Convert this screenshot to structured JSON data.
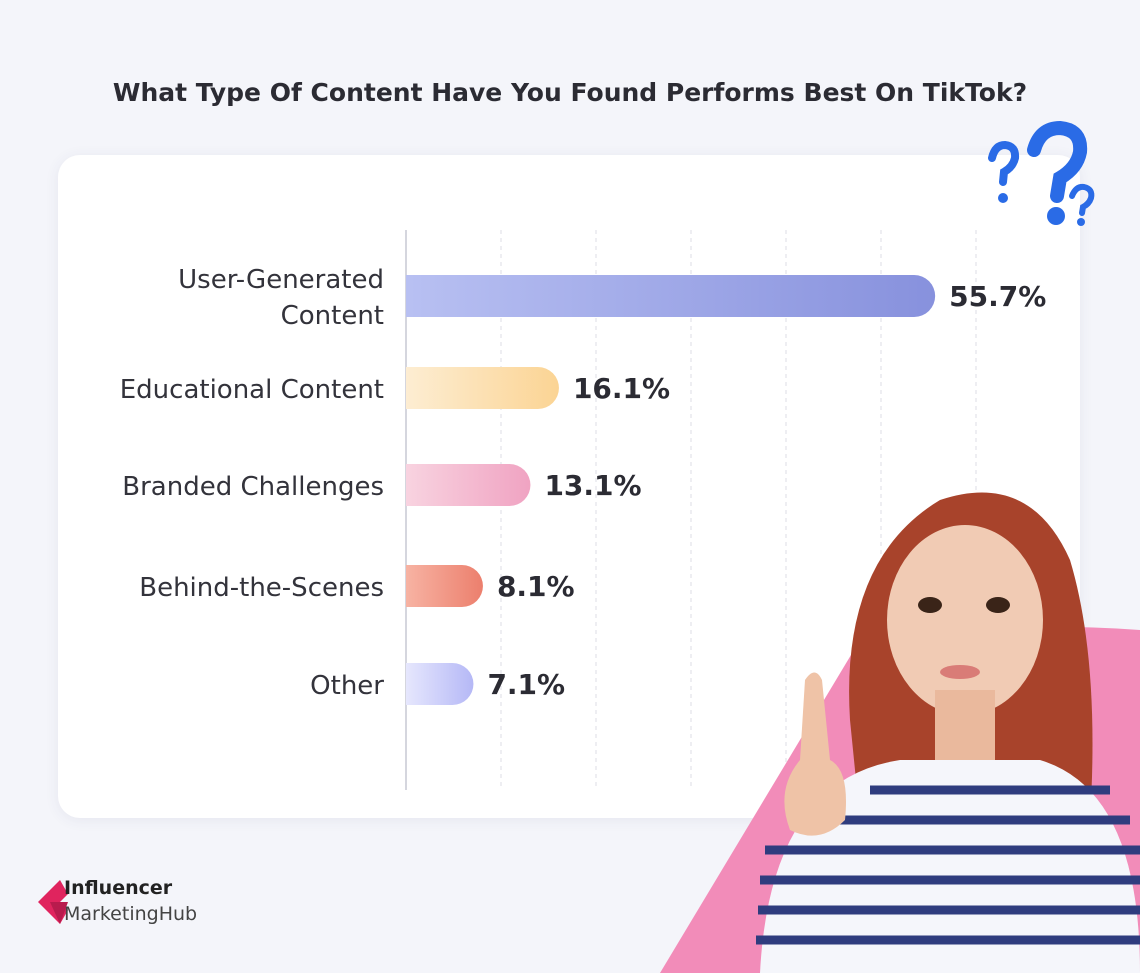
{
  "chart_data": {
    "type": "bar",
    "orientation": "horizontal",
    "title": "What Type Of Content Have You Found Performs Best On TikTok?",
    "categories": [
      "User-Generated Content",
      "Educational Content",
      "Branded Challenges",
      "Behind-the-Scenes",
      "Other"
    ],
    "category_lines": [
      [
        "User-Generated",
        "Content"
      ],
      [
        "Educational Content"
      ],
      [
        "Branded Challenges"
      ],
      [
        "Behind-the-Scenes"
      ],
      [
        "Other"
      ]
    ],
    "values": [
      55.7,
      16.1,
      13.1,
      8.1,
      7.1
    ],
    "data_labels": [
      "55.7%",
      "16.1%",
      "13.1%",
      "8.1%",
      "7.1%"
    ],
    "unit": "%",
    "xlim": [
      0,
      60
    ],
    "grid": "vertical dashed",
    "colors": [
      [
        "#b8c0f2",
        "#8791dd"
      ],
      [
        "#fdedd2",
        "#fbd494"
      ],
      [
        "#f8d3e0",
        "#f0a3c2"
      ],
      [
        "#f7b3a3",
        "#ec7f6d"
      ],
      [
        "#e6e7fd",
        "#b5b8f6"
      ]
    ]
  },
  "brand": {
    "line1": "Influencer",
    "line2": "MarketingHub",
    "color": "#e0245e"
  },
  "decor": {
    "question_marks_color": "#2a6be6",
    "accent_pink": "#f28cb9"
  }
}
